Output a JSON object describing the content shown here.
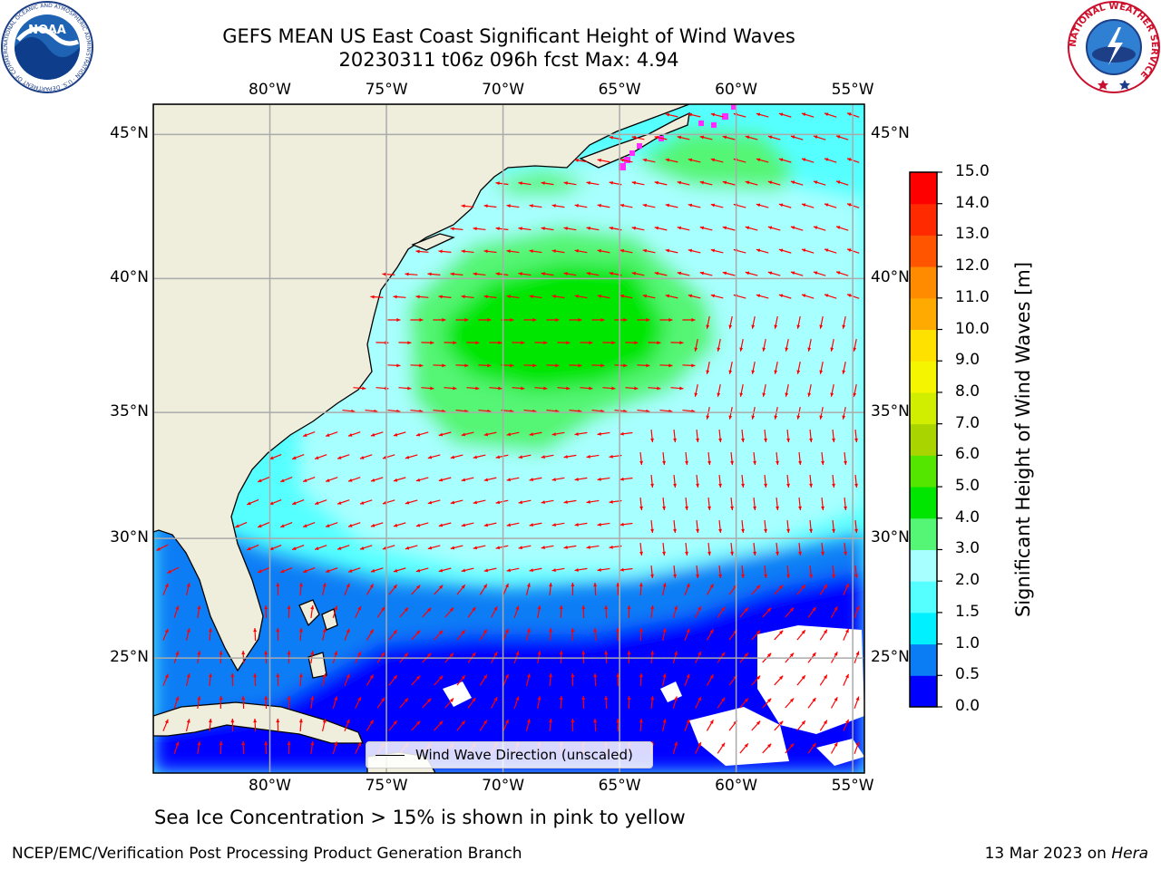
{
  "title": {
    "line1": "GEFS MEAN US East Coast Significant Height of Wind Waves",
    "line2": "20230311 t06z 096h fcst   Max: 4.94"
  },
  "logos": {
    "noaa_text": "NOAA",
    "noaa_ring": "NATIONAL OCEANIC AND ATMOSPHERIC ADMINISTRATION · U.S. DEPARTMENT OF COMMERCE",
    "nws_ring": "NATIONAL WEATHER SERVICE"
  },
  "map": {
    "lon_range": [
      -85,
      -54.5
    ],
    "lat_range": [
      20,
      46
    ],
    "lon_labels": [
      "80°W",
      "75°W",
      "70°W",
      "65°W",
      "60°W",
      "55°W"
    ],
    "lon_values": [
      -80,
      -75,
      -70,
      -65,
      -60,
      -55
    ],
    "lat_labels": [
      "45°N",
      "40°N",
      "35°N",
      "30°N",
      "25°N"
    ],
    "lat_values": [
      45,
      40,
      35,
      30,
      25
    ],
    "grid": true,
    "land_color": "#efeedc",
    "arrow_color": "#ff0000",
    "legend": "Wind Wave Direction (unscaled)"
  },
  "colorbar": {
    "label": "Significant Height of Wind Waves [m]",
    "ticks": [
      "0.0",
      "0.5",
      "1.0",
      "1.5",
      "2.0",
      "3.0",
      "4.0",
      "5.0",
      "6.0",
      "7.0",
      "8.0",
      "9.0",
      "10.0",
      "11.0",
      "12.0",
      "13.0",
      "14.0",
      "15.0"
    ],
    "colors": [
      "#0000ff",
      "#0a7df5",
      "#00f0ff",
      "#55ffff",
      "#a8ffff",
      "#55f575",
      "#00e600",
      "#55e600",
      "#aad400",
      "#d2ee00",
      "#f5f500",
      "#ffe100",
      "#ffaa00",
      "#ff8c00",
      "#ff5500",
      "#ff2a00",
      "#ff0000"
    ]
  },
  "footer": {
    "note": "Sea Ice Concentration > 15% is shown in pink to yellow",
    "credit": "NCEP/EMC/Verification Post Processing Product Generation Branch",
    "date_prefix": "13 Mar 2023 on ",
    "date_host": "Hera"
  }
}
